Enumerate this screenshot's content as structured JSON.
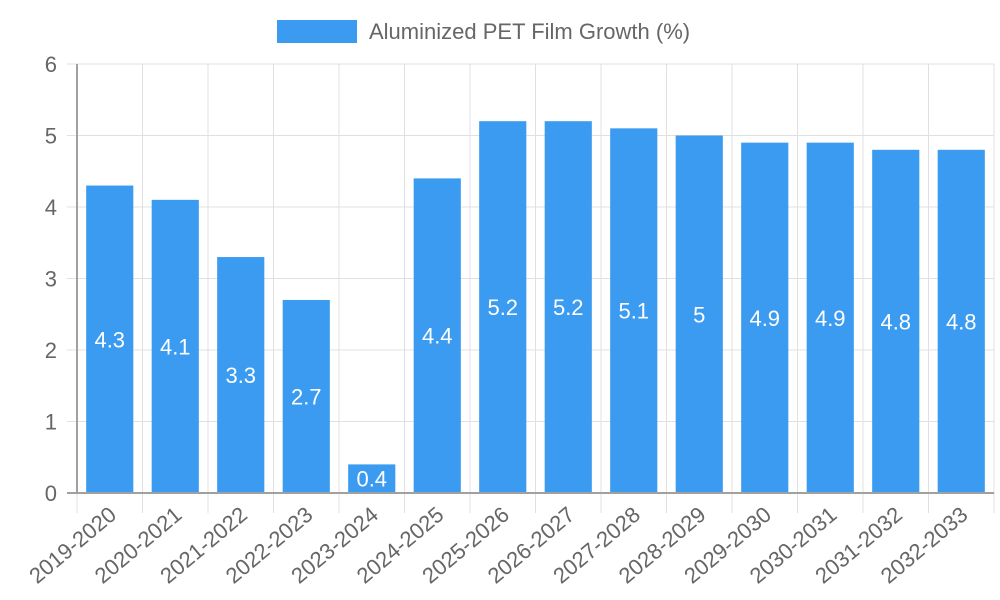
{
  "chart_data": {
    "type": "bar",
    "title": "",
    "xlabel": "",
    "ylabel": "",
    "legend": {
      "position": "top",
      "entries": [
        "Aluminized PET Film Growth (%)"
      ]
    },
    "grid": true,
    "ylim": [
      0,
      6
    ],
    "yticks": [
      0,
      1,
      2,
      3,
      4,
      5,
      6
    ],
    "categories": [
      "2019-2020",
      "2020-2021",
      "2021-2022",
      "2022-2023",
      "2023-2024",
      "2024-2025",
      "2025-2026",
      "2026-2027",
      "2027-2028",
      "2028-2029",
      "2029-2030",
      "2030-2031",
      "2031-2032",
      "2032-2033"
    ],
    "series": [
      {
        "name": "Aluminized PET Film Growth (%)",
        "color": "#3a9bf0",
        "values": [
          4.3,
          4.1,
          3.3,
          2.7,
          0.4,
          4.4,
          5.2,
          5.2,
          5.1,
          5,
          4.9,
          4.9,
          4.8,
          4.8
        ],
        "data_labels": [
          "4.3",
          "4.1",
          "3.3",
          "2.7",
          "0.4",
          "4.4",
          "5.2",
          "5.2",
          "5.1",
          "5",
          "4.9",
          "4.9",
          "4.8",
          "4.8"
        ]
      }
    ]
  },
  "legend": {
    "label": "Aluminized PET Film Growth (%)",
    "swatch_color": "#3a9bf0"
  },
  "colors": {
    "bar": "#3a9bf0",
    "grid": "#e0e0e0",
    "axis": "#a0a0a0",
    "text": "#666666",
    "label": "#ffffff"
  }
}
